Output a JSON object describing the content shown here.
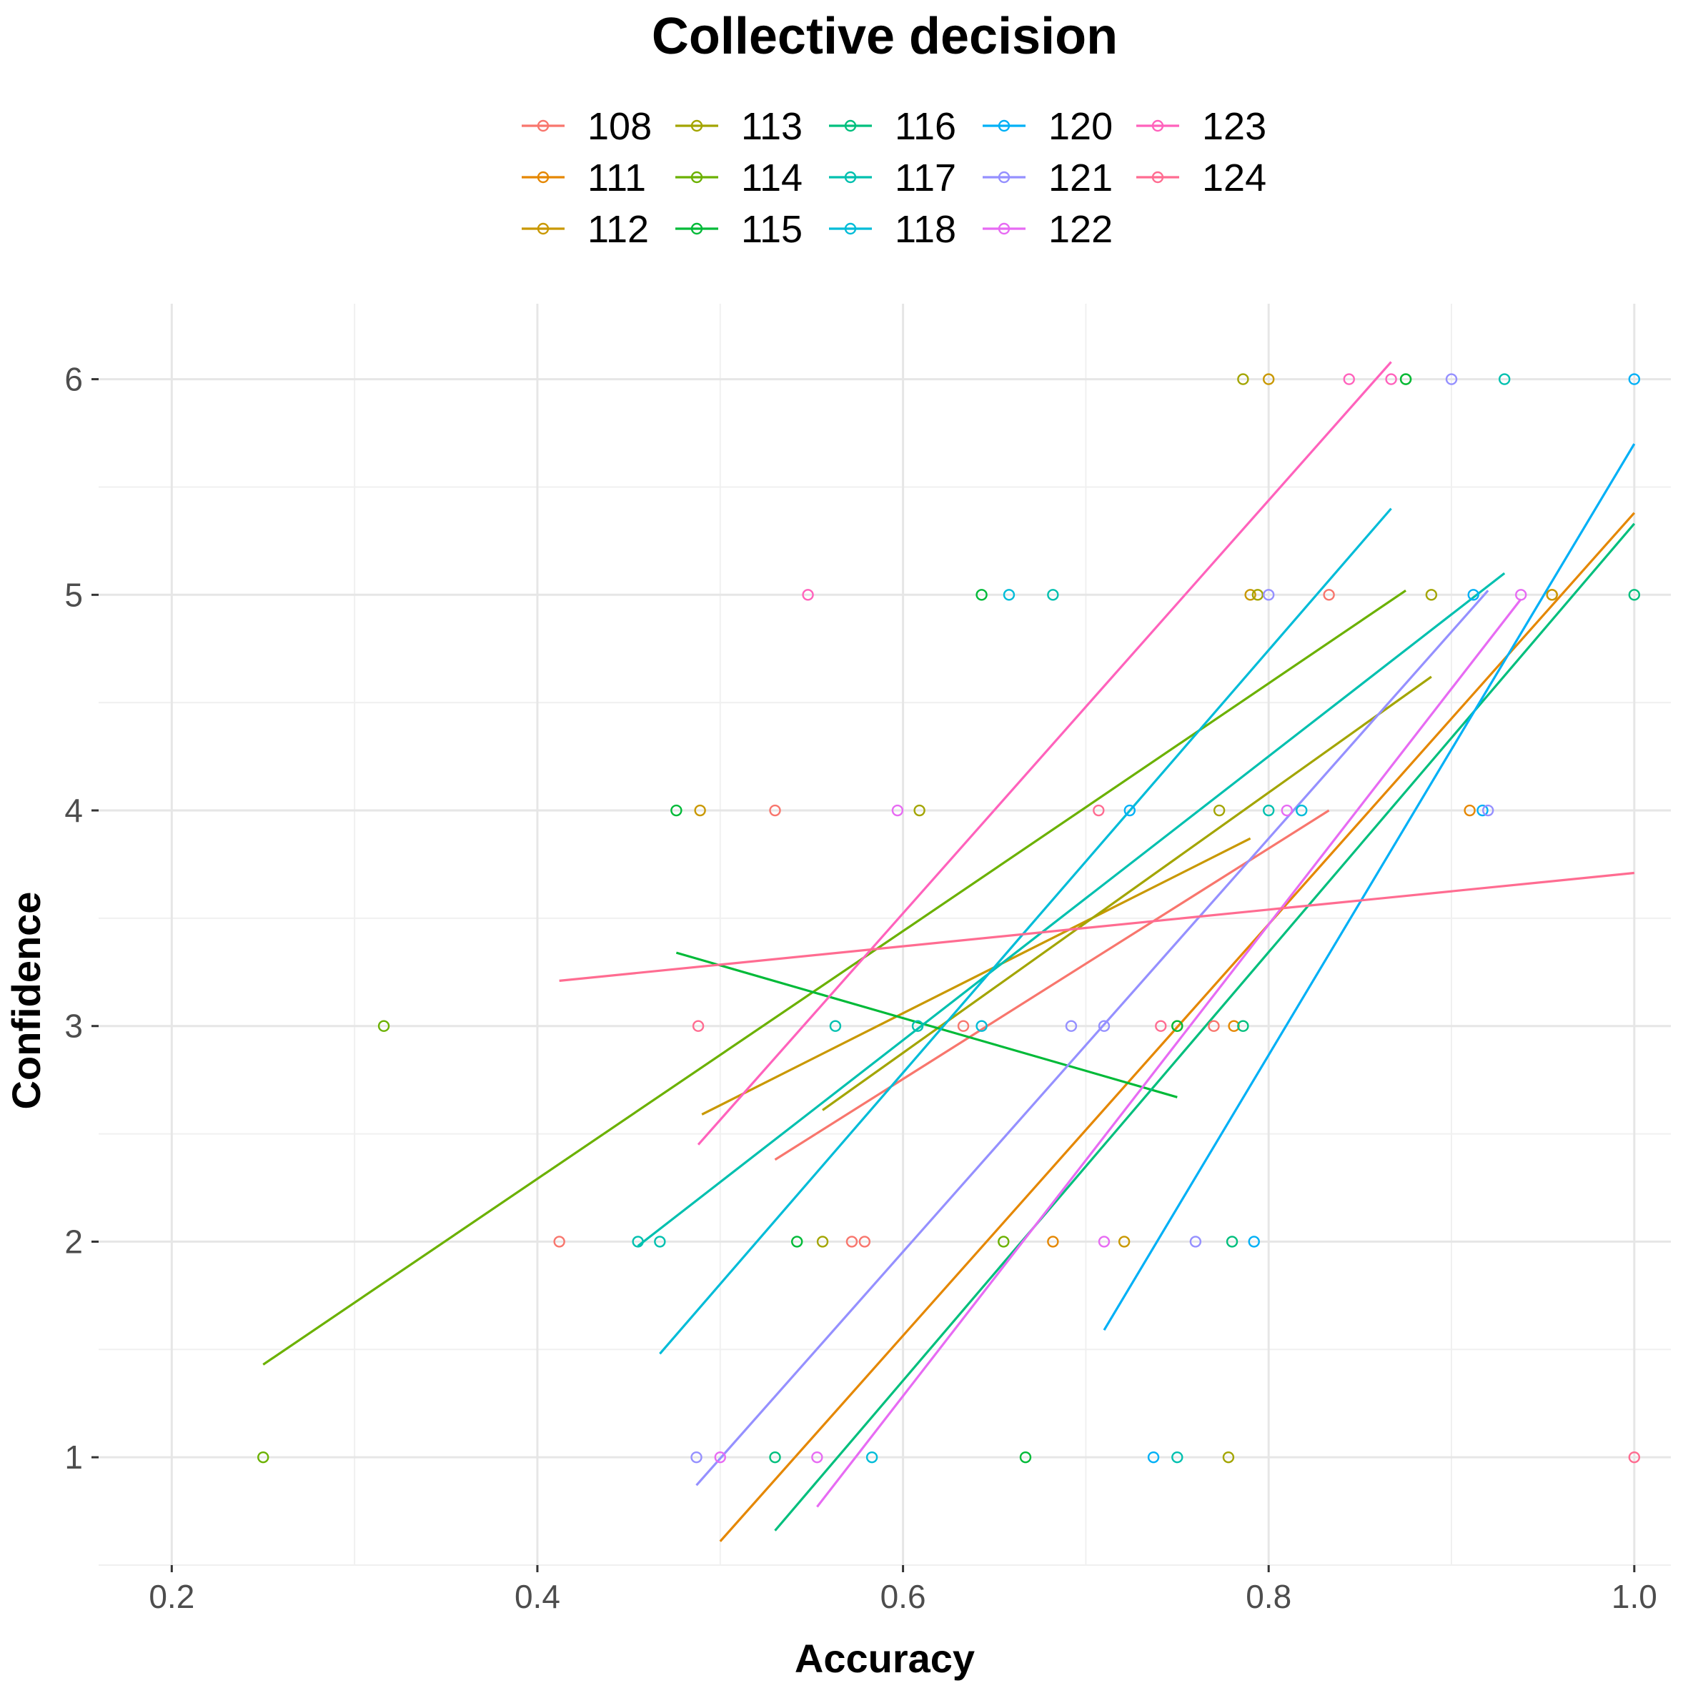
{
  "chart_data": {
    "type": "scatter",
    "title": "Collective decision",
    "xlabel": "Accuracy",
    "ylabel": "Confidence",
    "xlim": [
      0.16,
      1.02
    ],
    "ylim": [
      0.5,
      6.35
    ],
    "x_ticks": [
      0.2,
      0.4,
      0.6,
      0.8,
      1.0
    ],
    "x_tick_labels": [
      "0.2",
      "0.4",
      "0.6",
      "0.8",
      "1.0"
    ],
    "y_ticks": [
      1,
      2,
      3,
      4,
      5,
      6
    ],
    "y_tick_labels": [
      "1",
      "2",
      "3",
      "4",
      "5",
      "6"
    ],
    "grid": true,
    "legend_position": "top",
    "series": [
      {
        "name": "108",
        "color": "#F8766D",
        "points": [
          [
            0.412,
            2
          ],
          [
            0.53,
            4
          ],
          [
            0.572,
            2
          ],
          [
            0.579,
            2
          ],
          [
            0.633,
            3
          ],
          [
            0.77,
            3
          ],
          [
            0.833,
            5
          ]
        ],
        "fit": [
          [
            0.53,
            2.38
          ],
          [
            0.833,
            4.0
          ]
        ]
      },
      {
        "name": "111",
        "color": "#E58700",
        "points": [
          [
            0.682,
            2
          ],
          [
            0.781,
            3
          ],
          [
            0.91,
            4
          ],
          [
            0.955,
            5
          ]
        ],
        "fit": [
          [
            0.5,
            0.61
          ],
          [
            1.0,
            5.38
          ]
        ]
      },
      {
        "name": "112",
        "color": "#C99800",
        "points": [
          [
            0.489,
            4
          ],
          [
            0.721,
            2
          ],
          [
            0.79,
            5
          ],
          [
            0.8,
            6
          ],
          [
            0.955,
            5
          ]
        ],
        "fit": [
          [
            0.49,
            2.59
          ],
          [
            0.79,
            3.87
          ]
        ]
      },
      {
        "name": "113",
        "color": "#A3A500",
        "points": [
          [
            0.556,
            2
          ],
          [
            0.609,
            4
          ],
          [
            0.75,
            3
          ],
          [
            0.773,
            4
          ],
          [
            0.778,
            1
          ],
          [
            0.786,
            6
          ],
          [
            0.794,
            5
          ],
          [
            0.889,
            5
          ]
        ],
        "fit": [
          [
            0.556,
            2.61
          ],
          [
            0.889,
            4.62
          ]
        ]
      },
      {
        "name": "114",
        "color": "#6BB100",
        "points": [
          [
            0.25,
            1
          ],
          [
            0.316,
            3
          ],
          [
            0.655,
            2
          ],
          [
            0.875,
            6
          ]
        ],
        "fit": [
          [
            0.25,
            1.43
          ],
          [
            0.875,
            5.02
          ]
        ]
      },
      {
        "name": "115",
        "color": "#00BA38",
        "points": [
          [
            0.476,
            4
          ],
          [
            0.542,
            2
          ],
          [
            0.643,
            5
          ],
          [
            0.667,
            1
          ],
          [
            0.75,
            3
          ],
          [
            0.875,
            6
          ]
        ],
        "fit": [
          [
            0.476,
            3.34
          ],
          [
            0.75,
            2.67
          ]
        ]
      },
      {
        "name": "116",
        "color": "#00BF7D",
        "points": [
          [
            0.53,
            1
          ],
          [
            0.78,
            2
          ],
          [
            0.786,
            3
          ],
          [
            1.0,
            5
          ]
        ],
        "fit": [
          [
            0.53,
            0.66
          ],
          [
            1.0,
            5.33
          ]
        ]
      },
      {
        "name": "117",
        "color": "#00C0AF",
        "points": [
          [
            0.455,
            2
          ],
          [
            0.467,
            2
          ],
          [
            0.563,
            3
          ],
          [
            0.608,
            3
          ],
          [
            0.682,
            5
          ],
          [
            0.75,
            1
          ],
          [
            0.8,
            4
          ],
          [
            0.929,
            6
          ]
        ],
        "fit": [
          [
            0.455,
            1.98
          ],
          [
            0.929,
            5.1
          ]
        ]
      },
      {
        "name": "118",
        "color": "#00BCD8",
        "points": [
          [
            0.583,
            1
          ],
          [
            0.643,
            3
          ],
          [
            0.658,
            5
          ],
          [
            0.818,
            4
          ]
        ],
        "fit": [
          [
            0.467,
            1.48
          ],
          [
            0.867,
            5.4
          ]
        ]
      },
      {
        "name": "120",
        "color": "#00B0F6",
        "points": [
          [
            0.724,
            4
          ],
          [
            0.737,
            1
          ],
          [
            0.792,
            2
          ],
          [
            0.912,
            5
          ],
          [
            0.917,
            4
          ],
          [
            1.0,
            6
          ]
        ],
        "fit": [
          [
            0.71,
            1.59
          ],
          [
            1.0,
            5.7
          ]
        ]
      },
      {
        "name": "121",
        "color": "#9590FF",
        "points": [
          [
            0.487,
            1
          ],
          [
            0.692,
            3
          ],
          [
            0.71,
            3
          ],
          [
            0.76,
            2
          ],
          [
            0.8,
            5
          ],
          [
            0.9,
            6
          ],
          [
            0.92,
            4
          ]
        ],
        "fit": [
          [
            0.487,
            0.87
          ],
          [
            0.92,
            5.02
          ]
        ]
      },
      {
        "name": "122",
        "color": "#E76BF3",
        "points": [
          [
            0.5,
            1
          ],
          [
            0.553,
            1
          ],
          [
            0.597,
            4
          ],
          [
            0.71,
            2
          ],
          [
            0.81,
            4
          ],
          [
            0.938,
            5
          ]
        ],
        "fit": [
          [
            0.553,
            0.77
          ],
          [
            0.938,
            4.98
          ]
        ]
      },
      {
        "name": "123",
        "color": "#FF62BC",
        "points": [
          [
            0.548,
            5
          ],
          [
            0.844,
            6
          ],
          [
            0.867,
            6
          ]
        ],
        "fit": [
          [
            0.488,
            2.45
          ],
          [
            0.867,
            6.08
          ]
        ]
      },
      {
        "name": "124",
        "color": "#FF6C91",
        "points": [
          [
            0.488,
            3
          ],
          [
            0.707,
            4
          ],
          [
            0.741,
            3
          ],
          [
            1.0,
            1
          ]
        ],
        "fit": [
          [
            0.412,
            3.21
          ],
          [
            1.0,
            3.71
          ]
        ]
      }
    ]
  }
}
